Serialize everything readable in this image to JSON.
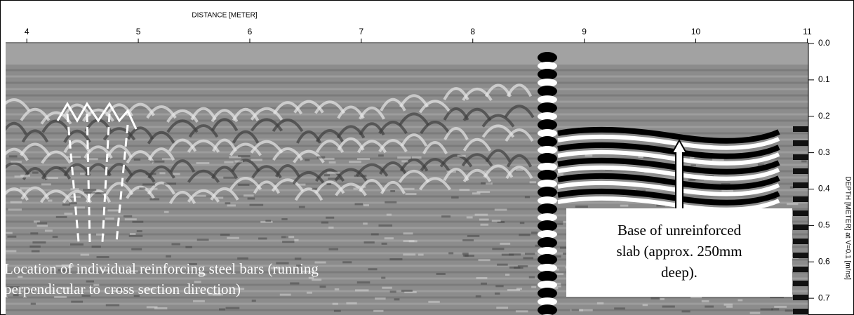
{
  "chart_data": {
    "type": "radargram",
    "xlabel": "DISTANCE [METER]",
    "ylabel": "DEPTH [METER] at V=0.1 [m/ns]",
    "xlim": [
      3.81,
      11.01
    ],
    "xticks": [
      4,
      5,
      6,
      7,
      8,
      9,
      10,
      11
    ],
    "ylim": [
      0,
      0.746
    ],
    "yticks": [
      {
        "value": 0,
        "label": "0.0"
      },
      0.1,
      0.2,
      0.3,
      0.4,
      0.5,
      0.6,
      0.7
    ],
    "annotations": [
      {
        "lines": [
          "Location of individual reinforcing steel bars (running",
          "perpendicular to cross section direction)"
        ]
      },
      {
        "lines": [
          "Base of unreinforced",
          "slab (approx. 250mm",
          "deep)."
        ]
      }
    ]
  }
}
